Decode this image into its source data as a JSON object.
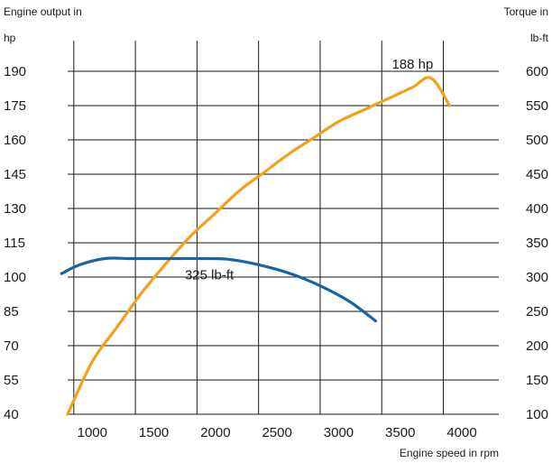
{
  "chart_data": {
    "type": "line",
    "xlabel": "Engine speed in rpm",
    "ylabel_left_line1": "Engine output in",
    "ylabel_left_line2": "hp",
    "ylabel_right_line1": "Torque in",
    "ylabel_right_line2": "lb-ft",
    "x_ticks": [
      1000,
      1500,
      2000,
      2500,
      3000,
      3500,
      4000
    ],
    "y_left_ticks": [
      40,
      55,
      70,
      85,
      100,
      115,
      130,
      145,
      160,
      175,
      190
    ],
    "y_right_ticks": [
      100,
      150,
      200,
      250,
      300,
      350,
      400,
      450,
      500,
      550,
      600
    ],
    "xlim": [
      800,
      4300
    ],
    "ylim_left": [
      40,
      190
    ],
    "ylim_right": [
      100,
      600
    ],
    "grid": true,
    "series": [
      {
        "axis": "left",
        "color": "#f5a01a",
        "x": [
          800,
          1000,
          1200,
          1400,
          1600,
          1800,
          2000,
          2200,
          2400,
          2600,
          2800,
          3000,
          3200,
          3400,
          3600,
          3750,
          3900
        ],
        "y": [
          40,
          63,
          78,
          93,
          106,
          118,
          128,
          138,
          146,
          154,
          161,
          168,
          173,
          178,
          183,
          187,
          175
        ]
      },
      {
        "axis": "right",
        "color": "#1a64a0",
        "x": [
          750,
          900,
          1100,
          1300,
          1500,
          1700,
          1900,
          2100,
          2300,
          2500,
          2700,
          2900,
          3100,
          3300
        ],
        "y": [
          305,
          318,
          327,
          327,
          327,
          327,
          327,
          326,
          320,
          311,
          299,
          283,
          263,
          236
        ]
      }
    ],
    "annotations": [
      {
        "text": "188 hp",
        "x": 3600,
        "y_left": 190
      },
      {
        "text": "325 lb-ft",
        "x": 1950,
        "y_left": 101
      }
    ]
  }
}
